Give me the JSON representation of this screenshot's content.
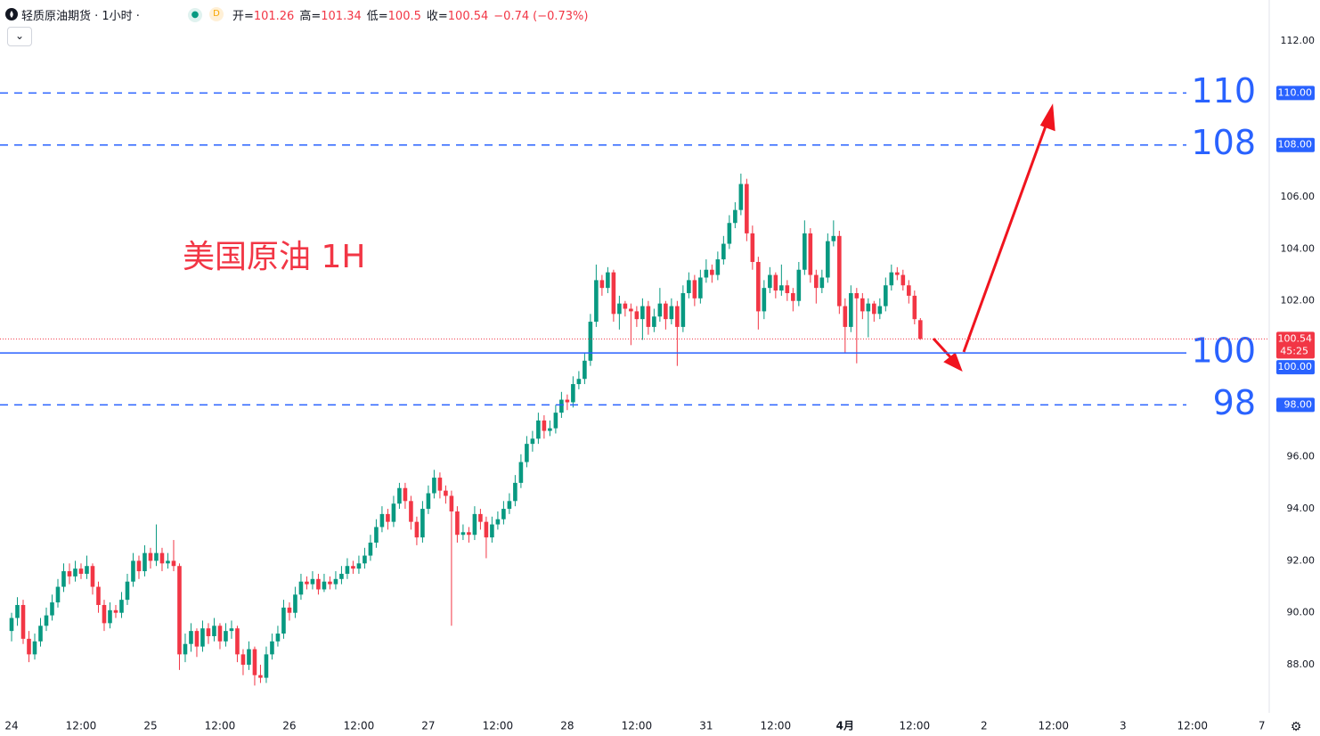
{
  "chart_data": {
    "type": "candlestick",
    "title": "轻质原油期货 · 1小时 ·",
    "badge": "D",
    "ohlc": [
      {
        "label": "开=",
        "value": 101.26
      },
      {
        "label": "高=",
        "value": 101.34
      },
      {
        "label": "低=",
        "value": 100.5
      },
      {
        "label": "收=",
        "value": 100.54
      }
    ],
    "change": {
      "value": -0.74,
      "label": "−0.74"
    },
    "change_pct": {
      "value": -0.73,
      "label": "(−0.73%)"
    },
    "annotation": "美国原油 1H",
    "up_color": "#089981",
    "down_color": "#f23645",
    "candles": [
      [
        89.3,
        90.0,
        88.9,
        89.8
      ],
      [
        89.8,
        90.6,
        89.5,
        90.3
      ],
      [
        90.3,
        90.5,
        88.8,
        89.0
      ],
      [
        89.0,
        89.3,
        88.1,
        88.4
      ],
      [
        88.4,
        89.2,
        88.2,
        88.9
      ],
      [
        88.9,
        89.8,
        88.7,
        89.5
      ],
      [
        89.5,
        90.2,
        89.3,
        89.9
      ],
      [
        89.9,
        90.7,
        89.7,
        90.4
      ],
      [
        90.4,
        91.3,
        90.2,
        91.0
      ],
      [
        91.0,
        91.9,
        90.8,
        91.6
      ],
      [
        91.6,
        91.9,
        91.1,
        91.4
      ],
      [
        91.4,
        92.0,
        91.2,
        91.7
      ],
      [
        91.7,
        91.9,
        91.3,
        91.5
      ],
      [
        91.5,
        92.2,
        91.3,
        91.8
      ],
      [
        91.8,
        91.9,
        90.7,
        91.0
      ],
      [
        91.0,
        91.2,
        90.0,
        90.3
      ],
      [
        90.3,
        90.5,
        89.3,
        89.6
      ],
      [
        89.6,
        90.4,
        89.4,
        90.1
      ],
      [
        90.1,
        90.3,
        89.8,
        90.0
      ],
      [
        90.0,
        90.8,
        89.8,
        90.5
      ],
      [
        90.5,
        91.5,
        90.3,
        91.2
      ],
      [
        91.2,
        92.3,
        91.0,
        92.0
      ],
      [
        92.0,
        92.2,
        91.3,
        91.6
      ],
      [
        91.6,
        92.6,
        91.4,
        92.3
      ],
      [
        92.3,
        92.5,
        91.7,
        92.0
      ],
      [
        92.0,
        93.4,
        91.8,
        92.3
      ],
      [
        92.3,
        92.5,
        91.6,
        91.9
      ],
      [
        91.9,
        92.3,
        91.7,
        92.0
      ],
      [
        92.0,
        92.8,
        91.6,
        91.8
      ],
      [
        91.8,
        91.9,
        87.8,
        88.4
      ],
      [
        88.4,
        89.2,
        88.1,
        88.8
      ],
      [
        88.8,
        89.6,
        88.5,
        89.3
      ],
      [
        89.3,
        89.4,
        88.3,
        88.7
      ],
      [
        88.7,
        89.7,
        88.5,
        89.4
      ],
      [
        89.4,
        89.6,
        88.8,
        89.1
      ],
      [
        89.1,
        89.8,
        88.9,
        89.5
      ],
      [
        89.5,
        89.6,
        88.6,
        88.9
      ],
      [
        88.9,
        89.6,
        88.7,
        89.3
      ],
      [
        89.3,
        89.7,
        89.0,
        89.4
      ],
      [
        89.4,
        89.5,
        88.1,
        88.4
      ],
      [
        88.4,
        88.6,
        87.6,
        88.0
      ],
      [
        88.0,
        88.9,
        87.8,
        88.6
      ],
      [
        88.6,
        88.7,
        87.2,
        87.6
      ],
      [
        87.6,
        88.0,
        87.3,
        87.5
      ],
      [
        87.5,
        88.7,
        87.3,
        88.4
      ],
      [
        88.4,
        89.2,
        88.2,
        88.9
      ],
      [
        88.9,
        89.5,
        88.7,
        89.2
      ],
      [
        89.2,
        90.5,
        89.0,
        90.2
      ],
      [
        90.2,
        90.4,
        89.7,
        90.0
      ],
      [
        90.0,
        91.0,
        89.8,
        90.7
      ],
      [
        90.7,
        91.5,
        90.5,
        91.2
      ],
      [
        91.2,
        91.4,
        90.9,
        91.1
      ],
      [
        91.1,
        91.6,
        90.9,
        91.3
      ],
      [
        91.3,
        91.5,
        90.7,
        90.9
      ],
      [
        90.9,
        91.5,
        90.8,
        91.2
      ],
      [
        91.2,
        91.4,
        90.9,
        91.1
      ],
      [
        91.1,
        91.6,
        90.9,
        91.3
      ],
      [
        91.3,
        91.8,
        91.1,
        91.5
      ],
      [
        91.5,
        92.1,
        91.3,
        91.8
      ],
      [
        91.8,
        92.0,
        91.5,
        91.7
      ],
      [
        91.7,
        92.2,
        91.5,
        91.9
      ],
      [
        91.9,
        92.5,
        91.7,
        92.2
      ],
      [
        92.2,
        93.0,
        92.0,
        92.7
      ],
      [
        92.7,
        93.6,
        92.5,
        93.3
      ],
      [
        93.3,
        94.1,
        93.1,
        93.8
      ],
      [
        93.8,
        94.0,
        93.2,
        93.5
      ],
      [
        93.5,
        94.5,
        93.3,
        94.2
      ],
      [
        94.2,
        95.0,
        94.0,
        94.8
      ],
      [
        94.8,
        95.0,
        94.0,
        94.3
      ],
      [
        94.3,
        94.5,
        93.2,
        93.5
      ],
      [
        93.5,
        93.7,
        92.6,
        92.9
      ],
      [
        92.9,
        94.3,
        92.7,
        94.0
      ],
      [
        94.0,
        94.9,
        93.8,
        94.6
      ],
      [
        94.6,
        95.5,
        94.4,
        95.2
      ],
      [
        95.2,
        95.4,
        94.4,
        94.7
      ],
      [
        94.7,
        94.9,
        94.2,
        94.5
      ],
      [
        94.5,
        94.7,
        89.5,
        93.9
      ],
      [
        93.9,
        94.1,
        92.7,
        93.0
      ],
      [
        93.0,
        93.4,
        92.8,
        93.1
      ],
      [
        93.1,
        93.3,
        92.7,
        93.0
      ],
      [
        93.0,
        94.1,
        92.8,
        93.8
      ],
      [
        93.8,
        94.0,
        93.2,
        93.5
      ],
      [
        93.5,
        93.7,
        92.1,
        92.9
      ],
      [
        92.9,
        93.7,
        92.7,
        93.4
      ],
      [
        93.4,
        93.9,
        93.2,
        93.6
      ],
      [
        93.6,
        94.3,
        93.4,
        94.0
      ],
      [
        94.0,
        94.6,
        93.8,
        94.3
      ],
      [
        94.3,
        95.3,
        94.1,
        95.0
      ],
      [
        95.0,
        96.1,
        94.8,
        95.8
      ],
      [
        95.8,
        96.8,
        95.6,
        96.5
      ],
      [
        96.5,
        97.0,
        96.2,
        96.7
      ],
      [
        96.7,
        97.7,
        96.5,
        97.4
      ],
      [
        97.4,
        97.6,
        96.7,
        97.0
      ],
      [
        97.0,
        97.4,
        96.8,
        97.1
      ],
      [
        97.1,
        98.0,
        96.9,
        97.7
      ],
      [
        97.7,
        98.5,
        97.5,
        98.2
      ],
      [
        98.2,
        98.4,
        97.8,
        98.1
      ],
      [
        98.1,
        99.1,
        97.9,
        98.8
      ],
      [
        98.8,
        99.3,
        98.6,
        99.0
      ],
      [
        99.0,
        100.0,
        98.8,
        99.7
      ],
      [
        99.7,
        101.5,
        99.5,
        101.2
      ],
      [
        101.2,
        103.4,
        101.0,
        102.8
      ],
      [
        102.8,
        103.0,
        102.2,
        102.5
      ],
      [
        102.5,
        103.3,
        102.3,
        103.1
      ],
      [
        103.1,
        103.2,
        101.2,
        101.5
      ],
      [
        101.5,
        102.2,
        100.9,
        101.9
      ],
      [
        101.9,
        102.0,
        101.4,
        101.7
      ],
      [
        101.7,
        101.9,
        100.3,
        101.6
      ],
      [
        101.6,
        101.8,
        101.0,
        101.3
      ],
      [
        101.3,
        102.1,
        100.5,
        101.8
      ],
      [
        101.8,
        102.0,
        100.7,
        101.0
      ],
      [
        101.0,
        101.7,
        100.8,
        101.4
      ],
      [
        101.4,
        102.5,
        101.2,
        101.9
      ],
      [
        101.9,
        102.0,
        100.9,
        101.3
      ],
      [
        101.3,
        102.1,
        101.1,
        101.8
      ],
      [
        101.8,
        102.0,
        99.5,
        101.0
      ],
      [
        101.0,
        102.6,
        100.8,
        102.3
      ],
      [
        102.3,
        103.1,
        102.1,
        102.8
      ],
      [
        102.8,
        103.0,
        101.8,
        102.1
      ],
      [
        102.1,
        103.2,
        101.9,
        102.9
      ],
      [
        102.9,
        103.6,
        102.7,
        103.2
      ],
      [
        103.2,
        103.4,
        102.7,
        103.0
      ],
      [
        103.0,
        103.9,
        102.8,
        103.6
      ],
      [
        103.6,
        104.5,
        103.4,
        104.2
      ],
      [
        104.2,
        105.3,
        104.0,
        105.0
      ],
      [
        105.0,
        105.8,
        104.8,
        105.5
      ],
      [
        105.5,
        106.9,
        105.3,
        106.5
      ],
      [
        106.5,
        106.7,
        104.3,
        104.6
      ],
      [
        104.6,
        104.9,
        103.2,
        103.5
      ],
      [
        103.5,
        103.7,
        100.9,
        101.6
      ],
      [
        101.6,
        102.8,
        101.3,
        102.5
      ],
      [
        102.5,
        103.3,
        102.3,
        103.0
      ],
      [
        103.0,
        103.1,
        102.1,
        102.4
      ],
      [
        102.4,
        103.4,
        102.2,
        102.6
      ],
      [
        102.6,
        102.8,
        102.0,
        102.3
      ],
      [
        102.3,
        102.5,
        101.6,
        102.0
      ],
      [
        102.0,
        103.5,
        101.8,
        103.2
      ],
      [
        103.2,
        105.1,
        103.0,
        104.6
      ],
      [
        104.6,
        104.8,
        102.7,
        103.0
      ],
      [
        103.0,
        103.2,
        101.9,
        102.5
      ],
      [
        102.5,
        103.2,
        102.3,
        102.9
      ],
      [
        102.9,
        104.6,
        102.7,
        104.3
      ],
      [
        104.3,
        105.1,
        104.1,
        104.5
      ],
      [
        104.5,
        104.7,
        101.5,
        101.8
      ],
      [
        101.8,
        102.1,
        100.0,
        101.0
      ],
      [
        101.0,
        102.6,
        100.8,
        102.3
      ],
      [
        102.3,
        102.5,
        99.6,
        102.1
      ],
      [
        102.1,
        102.3,
        101.3,
        101.6
      ],
      [
        101.6,
        102.1,
        100.6,
        101.9
      ],
      [
        101.9,
        102.0,
        101.2,
        101.5
      ],
      [
        101.5,
        102.1,
        101.3,
        101.8
      ],
      [
        101.8,
        102.9,
        101.6,
        102.6
      ],
      [
        102.6,
        103.4,
        102.4,
        103.1
      ],
      [
        103.1,
        103.3,
        102.8,
        103.0
      ],
      [
        103.0,
        103.2,
        102.4,
        102.6
      ],
      [
        102.6,
        102.8,
        101.9,
        102.2
      ],
      [
        102.2,
        102.4,
        101.1,
        101.3
      ],
      [
        101.26,
        101.34,
        100.5,
        100.54
      ]
    ],
    "xlim": [
      -2,
      216.5
    ],
    "xticks": [
      {
        "value": 0,
        "label": "24"
      },
      {
        "value": 12,
        "label": "12:00"
      },
      {
        "value": 24,
        "label": "25"
      },
      {
        "value": 36,
        "label": "12:00"
      },
      {
        "value": 48,
        "label": "26"
      },
      {
        "value": 60,
        "label": "12:00"
      },
      {
        "value": 72,
        "label": "27"
      },
      {
        "value": 84,
        "label": "12:00"
      },
      {
        "value": 96,
        "label": "28"
      },
      {
        "value": 108,
        "label": "12:00"
      },
      {
        "value": 120,
        "label": "31"
      },
      {
        "value": 132,
        "label": "12:00"
      },
      {
        "value": 144,
        "label": "4月"
      },
      {
        "value": 156,
        "label": "12:00"
      },
      {
        "value": 168,
        "label": "2"
      },
      {
        "value": 180,
        "label": "12:00"
      },
      {
        "value": 192,
        "label": "3"
      },
      {
        "value": 204,
        "label": "12:00"
      },
      {
        "value": 216,
        "label": "7"
      }
    ],
    "ylim": [
      86.15,
      113.58
    ],
    "yticks": [
      {
        "value": 88,
        "label": "88.00"
      },
      {
        "value": 90,
        "label": "90.00"
      },
      {
        "value": 92,
        "label": "92.00"
      },
      {
        "value": 94,
        "label": "94.00"
      },
      {
        "value": 96,
        "label": "96.00"
      },
      {
        "value": 102,
        "label": "102.00"
      },
      {
        "value": 104,
        "label": "104.00"
      },
      {
        "value": 106,
        "label": "106.00"
      },
      {
        "value": 112,
        "label": "112.00"
      }
    ],
    "levels": [
      {
        "value": 110,
        "label": "110",
        "axis_label": "110.00",
        "style": "dashed"
      },
      {
        "value": 108,
        "label": "108",
        "axis_label": "108.00",
        "style": "dashed"
      },
      {
        "value": 100,
        "label": "100",
        "axis_label": "100.00",
        "style": "solid"
      },
      {
        "value": 98,
        "label": "98",
        "axis_label": "98.00",
        "style": "dashed"
      }
    ],
    "level_color": "#2962ff",
    "last_price": 100.54,
    "countdown": "45:25"
  }
}
